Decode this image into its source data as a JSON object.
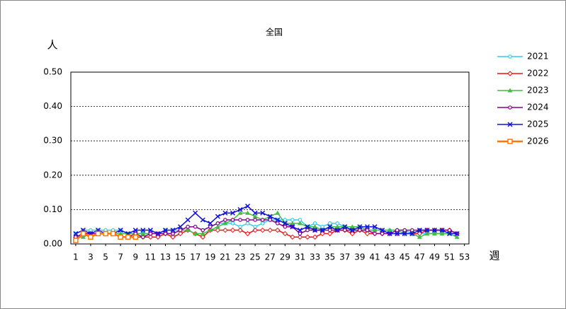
{
  "chart_data": {
    "type": "line",
    "title": "全国",
    "y_label": "人",
    "x_label": "週",
    "x": [
      1,
      2,
      3,
      4,
      5,
      6,
      7,
      8,
      9,
      10,
      11,
      12,
      13,
      14,
      15,
      16,
      17,
      18,
      19,
      20,
      21,
      22,
      23,
      24,
      25,
      26,
      27,
      28,
      29,
      30,
      31,
      32,
      33,
      34,
      35,
      36,
      37,
      38,
      39,
      40,
      41,
      42,
      43,
      44,
      45,
      46,
      47,
      48,
      49,
      50,
      51,
      52
    ],
    "xlim": [
      0.35,
      53.6
    ],
    "xticks": [
      1,
      3,
      5,
      7,
      9,
      11,
      13,
      15,
      17,
      19,
      21,
      23,
      25,
      27,
      29,
      31,
      33,
      35,
      37,
      39,
      41,
      43,
      45,
      47,
      49,
      51,
      53
    ],
    "ylim": [
      0,
      0.5
    ],
    "yticks": [
      {
        "value": 0,
        "label": "0.00"
      },
      {
        "value": 0.1,
        "label": "0.10"
      },
      {
        "value": 0.2,
        "label": "0.20"
      },
      {
        "value": 0.3,
        "label": "0.30"
      },
      {
        "value": 0.4,
        "label": "0.40"
      },
      {
        "value": 0.5,
        "label": "0.50"
      }
    ],
    "grid": true,
    "legend": "right",
    "series": [
      {
        "name": "2021",
        "color": "#33ccee",
        "marker": "circle",
        "values": [
          0.03,
          0.04,
          0.04,
          0.04,
          0.04,
          0.04,
          0.04,
          0.03,
          0.03,
          0.03,
          0.03,
          0.03,
          0.04,
          0.04,
          0.04,
          0.05,
          0.05,
          0.04,
          0.05,
          0.06,
          0.06,
          0.06,
          0.05,
          0.06,
          0.05,
          0.06,
          0.07,
          0.07,
          0.07,
          0.07,
          0.07,
          0.05,
          0.06,
          0.05,
          0.06,
          0.06,
          0.05,
          0.04,
          0.04,
          0.04,
          0.04,
          0.04,
          0.04,
          0.04,
          0.04,
          0.03,
          0.03,
          0.03,
          0.03,
          0.03,
          0.03,
          0.03
        ]
      },
      {
        "name": "2022",
        "color": "#ee1111",
        "marker": "diamond",
        "values": [
          0.02,
          0.03,
          0.03,
          0.03,
          0.03,
          0.03,
          0.02,
          0.02,
          0.02,
          0.02,
          0.02,
          0.02,
          0.03,
          0.02,
          0.03,
          0.04,
          0.03,
          0.02,
          0.04,
          0.04,
          0.04,
          0.04,
          0.04,
          0.03,
          0.04,
          0.04,
          0.04,
          0.04,
          0.03,
          0.02,
          0.02,
          0.02,
          0.02,
          0.03,
          0.03,
          0.04,
          0.04,
          0.03,
          0.04,
          0.03,
          0.03,
          0.03,
          0.03,
          0.03,
          0.03,
          0.03,
          0.03,
          0.04,
          0.04,
          0.04,
          0.04,
          0.03
        ]
      },
      {
        "name": "2023",
        "color": "#44bb44",
        "marker": "triangle",
        "values": [
          0.02,
          0.02,
          0.03,
          0.03,
          0.03,
          0.03,
          0.03,
          0.03,
          0.03,
          0.03,
          0.03,
          0.03,
          0.03,
          0.03,
          0.04,
          0.04,
          0.03,
          0.03,
          0.04,
          0.05,
          0.06,
          0.07,
          0.09,
          0.09,
          0.08,
          0.07,
          0.08,
          0.09,
          0.06,
          0.06,
          0.06,
          0.05,
          0.05,
          0.04,
          0.05,
          0.05,
          0.05,
          0.05,
          0.05,
          0.04,
          0.04,
          0.04,
          0.04,
          0.04,
          0.03,
          0.03,
          0.02,
          0.03,
          0.03,
          0.03,
          0.03,
          0.02
        ]
      },
      {
        "name": "2024",
        "color": "#880088",
        "marker": "circle",
        "values": [
          0.02,
          0.03,
          0.03,
          0.03,
          0.03,
          0.03,
          0.02,
          0.02,
          0.03,
          0.02,
          0.03,
          0.03,
          0.03,
          0.03,
          0.04,
          0.05,
          0.05,
          0.04,
          0.05,
          0.06,
          0.07,
          0.07,
          0.07,
          0.07,
          0.07,
          0.07,
          0.07,
          0.06,
          0.05,
          0.05,
          0.03,
          0.04,
          0.04,
          0.04,
          0.04,
          0.04,
          0.04,
          0.04,
          0.04,
          0.04,
          0.03,
          0.03,
          0.03,
          0.04,
          0.04,
          0.04,
          0.04,
          0.04,
          0.04,
          0.04,
          0.04,
          0.03
        ]
      },
      {
        "name": "2025",
        "color": "#1111dd",
        "marker": "x",
        "values": [
          0.03,
          0.04,
          0.03,
          0.04,
          0.03,
          0.03,
          0.04,
          0.03,
          0.04,
          0.04,
          0.04,
          0.03,
          0.04,
          0.04,
          0.05,
          0.07,
          0.09,
          0.07,
          0.06,
          0.08,
          0.09,
          0.09,
          0.1,
          0.11,
          0.09,
          0.09,
          0.08,
          0.07,
          0.06,
          0.05,
          0.04,
          0.05,
          0.04,
          0.04,
          0.05,
          0.04,
          0.05,
          0.04,
          0.05,
          0.05,
          0.05,
          0.04,
          0.03,
          0.03,
          0.03,
          0.03,
          0.04,
          0.04,
          0.04,
          0.04,
          0.03,
          0.03
        ]
      },
      {
        "name": "2026",
        "color": "#ff7700",
        "marker": "square",
        "values": [
          0.01,
          0.03,
          0.02,
          0.03,
          0.03,
          0.03,
          0.02,
          0.02,
          0.02,
          null,
          null,
          null,
          null,
          null,
          null,
          null,
          null,
          null,
          null,
          null,
          null,
          null,
          null,
          null,
          null,
          null,
          null,
          null,
          null,
          null,
          null,
          null,
          null,
          null,
          null,
          null,
          null,
          null,
          null,
          null,
          null,
          null,
          null,
          null,
          null,
          null,
          null,
          null,
          null,
          null,
          null,
          null
        ]
      }
    ]
  }
}
